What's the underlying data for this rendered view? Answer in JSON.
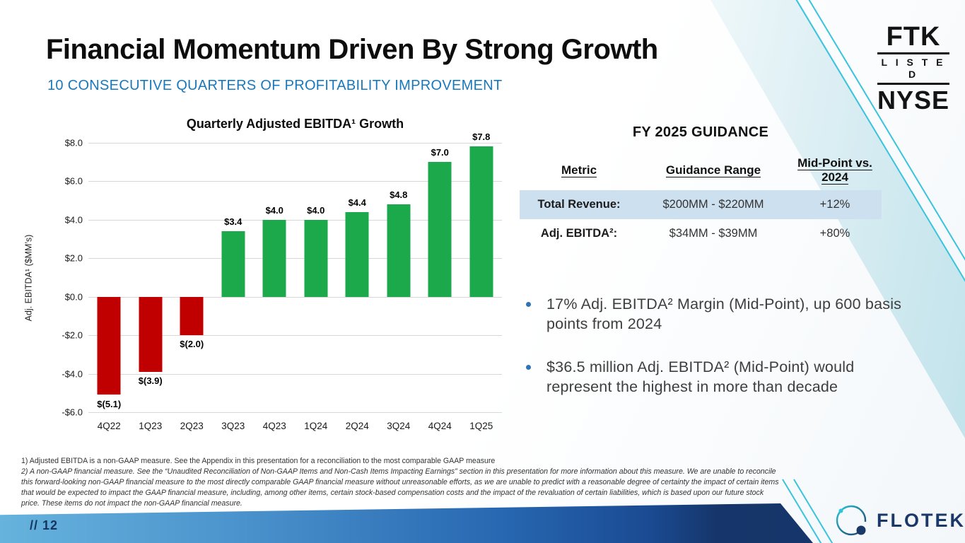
{
  "slide": {
    "title": "Financial Momentum Driven By Strong Growth",
    "subtitle": "10 CONSECUTIVE QUARTERS OF PROFITABILITY IMPROVEMENT",
    "page_number": "// 12"
  },
  "ticker_badge": {
    "symbol": "FTK",
    "listed": "L I S T E D",
    "exchange": "NYSE"
  },
  "chart_data": {
    "type": "bar",
    "title": "Quarterly Adjusted EBITDA¹ Growth",
    "ylabel": "Adj. EBITDA¹ ($MM’s)",
    "categories": [
      "4Q22",
      "1Q23",
      "2Q23",
      "3Q23",
      "4Q23",
      "1Q24",
      "2Q24",
      "3Q24",
      "4Q24",
      "1Q25"
    ],
    "values": [
      -5.1,
      -3.9,
      -2.0,
      3.4,
      4.0,
      4.0,
      4.4,
      4.8,
      7.0,
      7.8
    ],
    "labels": [
      "$(5.1)",
      "$(3.9)",
      "$(2.0)",
      "$3.4",
      "$4.0",
      "$4.0",
      "$4.4",
      "$4.8",
      "$7.0",
      "$7.8"
    ],
    "ylim": [
      -6,
      8
    ],
    "ytick_step": 2,
    "ytick_labels": [
      "$8.0",
      "$6.0",
      "$4.0",
      "$2.0",
      "$0.0",
      "-$2.0",
      "-$4.0",
      "-$6.0"
    ],
    "grid": true,
    "legend": false,
    "positive_color": "#1ba94c",
    "negative_color": "#c00000"
  },
  "guidance": {
    "title": "FY 2025 GUIDANCE",
    "columns": [
      "Metric",
      "Guidance Range",
      "Mid-Point vs. 2024"
    ],
    "rows": [
      [
        "Total Revenue:",
        "$200MM - $220MM",
        "+12%"
      ],
      [
        "Adj. EBITDA²:",
        "$34MM - $39MM",
        "+80%"
      ]
    ],
    "highlighted_row_index": 0
  },
  "bullets": [
    "17% Adj. EBITDA² Margin (Mid-Point), up 600 basis points from 2024",
    "$36.5 million Adj. EBITDA² (Mid-Point) would represent the highest in more than decade"
  ],
  "footnotes": [
    "1) Adjusted EBITDA is a non-GAAP measure.  See the Appendix in this presentation for a reconciliation to the most comparable GAAP measure",
    "2) A non-GAAP financial measure. See the “Unaudited Reconciliation of Non-GAAP Items and Non-Cash Items Impacting Earnings” section in this presentation for more information about this measure. We are unable to reconcile this forward-looking non-GAAP financial measure to the most directly comparable GAAP financial measure without unreasonable efforts, as we are unable to predict with a reasonable degree of certainty the impact of certain items that would be expected to impact the GAAP financial measure, including, among other items, certain stock-based compensation costs and the impact of the revaluation of certain liabilities, which is based upon our future stock price. These items do not impact the non-GAAP financial measure."
  ],
  "logo": {
    "name": "FLOTEK"
  },
  "colors": {
    "subtitle_blue": "#1878be",
    "bar_positive": "#1ba94c",
    "bar_negative": "#c00000",
    "table_highlight": "#cde0ef",
    "band_light": "#66b3dd",
    "band_dark": "#16356a",
    "teal_line": "#38c4dc",
    "navy": "#1b3968",
    "bullet_dot": "#2e75b6"
  }
}
